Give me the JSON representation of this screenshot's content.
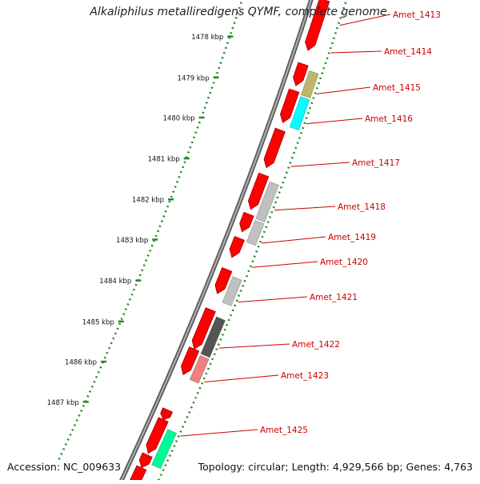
{
  "title": "Alkaliphilus metalliredigens QYMF, complete genome",
  "accession": "Accession: NC_009633",
  "summary": "Topology: circular; Length: 4,929,566 bp; Genes: 4,763",
  "colors": {
    "forward_gene": "#ff0000",
    "backbone": "#888888",
    "tick_dots": "#228b22",
    "label": "#cc0000"
  },
  "scale_labels": [
    "1478 kbp",
    "1479 kbp",
    "1480 kbp",
    "1481 kbp",
    "1482 kbp",
    "1483 kbp",
    "1484 kbp",
    "1485 kbp",
    "1486 kbp",
    "1487 kbp"
  ],
  "gene_labels": [
    "Amet_1413",
    "Amet_1414",
    "Amet_1415",
    "Amet_1416",
    "Amet_1417",
    "Amet_1418",
    "Amet_1419",
    "Amet_1420",
    "Amet_1421",
    "Amet_1422",
    "Amet_1423",
    "Amet_1425"
  ],
  "cog_feature_colors": [
    "#bdb76b",
    "#00ffff",
    "#c0c0c0",
    "#c0c0c0",
    "#c0c0c0",
    "#555555",
    "#f08080",
    "#00fa9a"
  ]
}
